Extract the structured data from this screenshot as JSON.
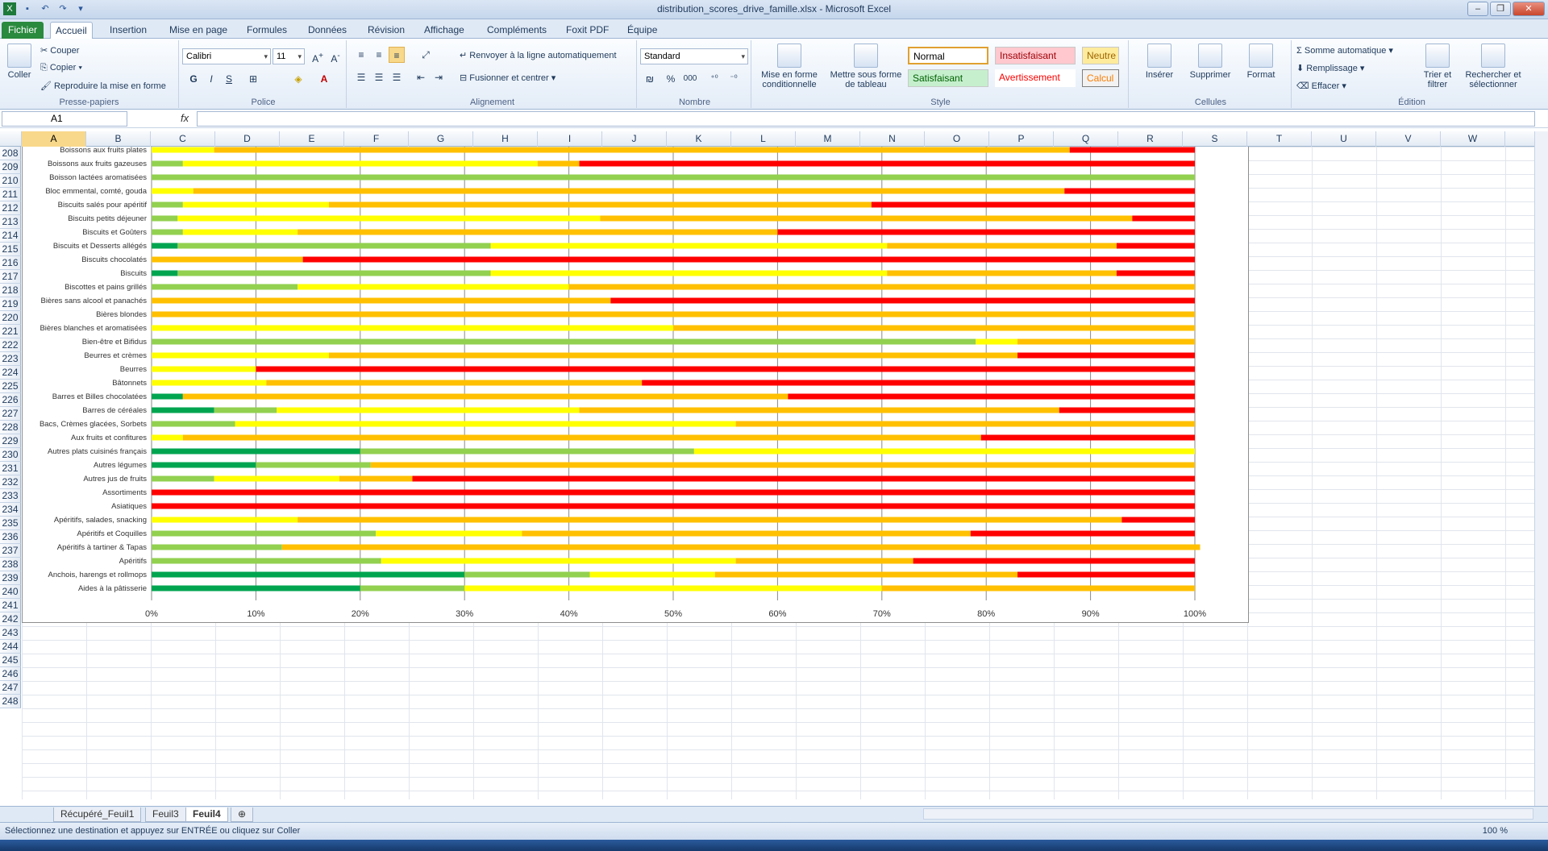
{
  "window": {
    "title": "distribution_scores_drive_famille.xlsx - Microsoft Excel"
  },
  "ribbon_tabs": [
    "Fichier",
    "Accueil",
    "Insertion",
    "Mise en page",
    "Formules",
    "Données",
    "Révision",
    "Affichage",
    "Compléments",
    "Foxit PDF",
    "Équipe"
  ],
  "clipboard": {
    "paste": "Coller",
    "cut": "Couper",
    "copy": "Copier",
    "format_painter": "Reproduire la mise en forme",
    "label": "Presse-papiers"
  },
  "font": {
    "name": "Calibri",
    "size": "11",
    "bold": "G",
    "italic": "I",
    "underline": "S",
    "label": "Police"
  },
  "alignment": {
    "wrap": "Renvoyer à la ligne automatiquement",
    "merge": "Fusionner et centrer",
    "label": "Alignement"
  },
  "number": {
    "format": "Standard",
    "percent": "%",
    "thousands": "000",
    "label": "Nombre"
  },
  "styles": {
    "cond": "Mise en forme conditionnelle",
    "table": "Mettre sous forme de tableau",
    "normal": "Normal",
    "bad": "Insatisfaisant",
    "neutral": "Neutre",
    "good": "Satisfaisant",
    "warning": "Avertissement",
    "calc": "Calcul",
    "label": "Style"
  },
  "cells": {
    "insert": "Insérer",
    "delete": "Supprimer",
    "format": "Format",
    "label": "Cellules"
  },
  "editing": {
    "autosum": "Somme automatique",
    "fill": "Remplissage",
    "clear": "Effacer",
    "sort": "Trier et filtrer",
    "find": "Rechercher et sélectionner",
    "label": "Édition"
  },
  "formula_bar": {
    "name_box": "A1",
    "fx": "fx",
    "value": ""
  },
  "columns": [
    "A",
    "B",
    "C",
    "D",
    "E",
    "F",
    "G",
    "H",
    "I",
    "J",
    "K",
    "L",
    "M",
    "N",
    "O",
    "P",
    "Q",
    "R",
    "S",
    "T",
    "U",
    "V",
    "W"
  ],
  "rows": [
    "208",
    "209",
    "210",
    "211",
    "212",
    "213",
    "214",
    "215",
    "216",
    "217",
    "218",
    "219",
    "220",
    "221",
    "222",
    "223",
    "224",
    "225",
    "226",
    "227",
    "228",
    "229",
    "230",
    "231",
    "232",
    "233",
    "234",
    "235",
    "236",
    "237",
    "238",
    "239",
    "240",
    "241",
    "242",
    "243",
    "244",
    "245",
    "246",
    "247",
    "248"
  ],
  "sheet_tabs": [
    "Récupéré_Feuil1",
    "Feuil3",
    "Feuil4"
  ],
  "active_sheet": "Feuil4",
  "status": {
    "message": "Sélectionnez une destination et appuyez sur ENTRÉE ou cliquez sur Coller",
    "zoom": "100 %"
  },
  "colors": {
    "dark_green": "#00a550",
    "light_green": "#92d050",
    "yellow": "#ffff00",
    "orange": "#ffc000",
    "red": "#ff0000"
  },
  "chart_data": {
    "type": "bar",
    "orientation": "horizontal-stacked-100",
    "xlim": [
      0,
      100
    ],
    "ticks": [
      "0%",
      "10%",
      "20%",
      "30%",
      "40%",
      "50%",
      "60%",
      "70%",
      "80%",
      "90%",
      "100%"
    ],
    "categories": [
      "Boissons aux fruits plates",
      "Boissons aux fruits gazeuses",
      "Boisson lactées aromatisées",
      "Bloc emmental, comté, gouda",
      "Biscuits salés pour apéritif",
      "Biscuits petits déjeuner",
      "Biscuits et Goûters",
      "Biscuits et Desserts allégés",
      "Biscuits chocolatés",
      "Biscuits",
      "Biscottes et pains grillés",
      "Bières sans alcool et panachés",
      "Bières blondes",
      "Bières blanches et aromatisées",
      "Bien-être et Bifidus",
      "Beurres et crèmes",
      "Beurres",
      "Bâtonnets",
      "Barres et Billes chocolatées",
      "Barres de céréales",
      "Bacs, Crèmes glacées, Sorbets",
      "Aux fruits et confitures",
      "Autres plats cuisinés français",
      "Autres légumes",
      "Autres jus de fruits",
      "Assortiments",
      "Asiatiques",
      "Apéritifs, salades, snacking",
      "Apéritifs et Coquilles",
      "Apéritifs à tartiner & Tapas",
      "Apéritifs",
      "Anchois, harengs et rollmops",
      "Aides à la pâtisserie"
    ],
    "series": [
      {
        "name": "",
        "values": [
          0,
          0,
          0,
          0,
          0,
          0,
          0,
          2.5,
          0,
          2.5,
          0,
          0,
          0,
          0,
          0,
          0,
          0,
          0,
          3,
          6,
          0,
          0,
          20,
          10,
          0,
          0,
          0,
          0,
          0,
          0,
          0,
          30,
          20
        ]
      },
      {
        "name": "",
        "values": [
          0,
          3,
          100,
          0,
          3,
          2.5,
          3,
          30,
          0,
          30,
          14,
          0,
          0,
          0,
          79,
          0,
          0,
          0,
          0,
          6,
          8,
          0,
          32,
          11,
          6,
          0,
          0,
          0,
          21.5,
          12.5,
          22,
          12,
          10
        ]
      },
      {
        "name": "",
        "values": [
          6,
          34,
          0,
          4,
          14,
          40.5,
          11,
          38,
          0,
          38,
          26,
          0,
          0,
          50,
          4,
          17,
          10,
          11,
          0,
          29,
          48,
          3,
          48,
          0,
          12,
          0,
          0,
          14,
          14,
          0,
          34,
          12,
          40
        ]
      },
      {
        "name": "",
        "values": [
          82,
          4,
          0,
          83.5,
          52,
          51,
          46,
          22,
          14.5,
          22,
          60,
          44,
          100,
          50,
          17,
          66,
          0,
          36,
          58,
          46,
          44,
          76.5,
          0,
          79,
          7,
          0,
          0,
          79,
          43,
          88,
          17,
          29,
          30
        ]
      },
      {
        "name": "",
        "values": [
          12,
          59,
          0,
          12.5,
          31,
          6,
          40,
          7.5,
          85.5,
          7.5,
          0,
          56,
          0,
          0,
          0,
          17,
          90,
          53,
          39,
          13,
          0,
          20.5,
          0,
          0,
          75,
          100,
          100,
          7,
          21.5,
          0,
          27,
          17,
          0
        ]
      }
    ]
  }
}
